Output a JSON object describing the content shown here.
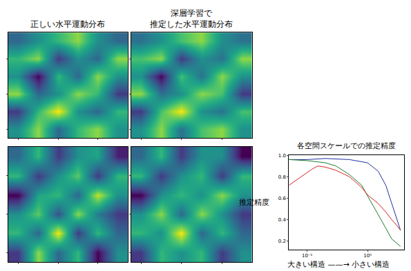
{
  "chart_data": [
    {
      "type": "heatmap",
      "title": "正しい水平運動分布",
      "tick_labels": false,
      "cells": [
        [
          0.5,
          0.6,
          0.45,
          0.55,
          0.6,
          0.5
        ],
        [
          0.4,
          0.55,
          0.65,
          0.5,
          0.45,
          0.55
        ],
        [
          0.6,
          0.45,
          0.5,
          0.6,
          0.55,
          0.4
        ],
        [
          0.5,
          0.35,
          0.55,
          0.45,
          0.6,
          0.5
        ],
        [
          0.55,
          0.6,
          0.4,
          0.5,
          0.45,
          0.6
        ],
        [
          0.45,
          0.5,
          0.55,
          0.6,
          0.5,
          0.45
        ]
      ]
    },
    {
      "type": "heatmap",
      "title": "深層学習で\n推定した水平運動分布",
      "tick_labels": false,
      "cells": [
        [
          0.5,
          0.58,
          0.47,
          0.55,
          0.58,
          0.5
        ],
        [
          0.42,
          0.55,
          0.62,
          0.5,
          0.47,
          0.55
        ],
        [
          0.58,
          0.47,
          0.5,
          0.58,
          0.55,
          0.42
        ],
        [
          0.5,
          0.38,
          0.55,
          0.47,
          0.58,
          0.5
        ],
        [
          0.55,
          0.58,
          0.42,
          0.5,
          0.47,
          0.58
        ],
        [
          0.47,
          0.5,
          0.55,
          0.58,
          0.5,
          0.47
        ]
      ]
    },
    {
      "type": "heatmap",
      "tick_labels": false,
      "cells": [
        [
          0.3,
          0.7,
          0.4,
          0.6,
          0.2,
          0.5
        ],
        [
          0.6,
          0.4,
          0.8,
          0.3,
          0.6,
          0.4
        ],
        [
          0.5,
          0.65,
          0.35,
          0.7,
          0.45,
          0.3
        ],
        [
          0.2,
          0.55,
          0.6,
          0.4,
          0.75,
          0.5
        ],
        [
          0.6,
          0.3,
          0.5,
          0.65,
          0.3,
          0.6
        ],
        [
          0.4,
          0.6,
          0.3,
          0.5,
          0.55,
          0.25
        ]
      ]
    },
    {
      "type": "heatmap",
      "tick_labels": false,
      "cells": [
        [
          0.4,
          0.55,
          0.5,
          0.55,
          0.4,
          0.5
        ],
        [
          0.55,
          0.5,
          0.65,
          0.45,
          0.55,
          0.45
        ],
        [
          0.5,
          0.6,
          0.45,
          0.6,
          0.5,
          0.4
        ],
        [
          0.35,
          0.5,
          0.55,
          0.5,
          0.6,
          0.5
        ],
        [
          0.55,
          0.4,
          0.5,
          0.55,
          0.4,
          0.55
        ],
        [
          0.45,
          0.55,
          0.4,
          0.5,
          0.5,
          0.35
        ]
      ]
    },
    {
      "type": "line",
      "title": "各空間スケールでの推定精度",
      "x_label": "大きい構造 ——→ 小さい構造",
      "y_label": "推定精度",
      "log": "x",
      "xlim": [
        0.05,
        4
      ],
      "ylim": [
        0.12,
        1.0
      ],
      "xticks": [
        {
          "value": 0.1,
          "label": "10⁻¹"
        },
        {
          "value": 1,
          "label": "10⁰"
        }
      ],
      "yticks": [
        0.2,
        0.4,
        0.6,
        0.8,
        {
          "value": 1,
          "label": "1.0"
        }
      ],
      "series": [
        {
          "color": "#1f2fa0",
          "x": [
            0.05,
            0.1,
            0.2,
            0.5,
            1.0,
            1.5,
            2.0,
            2.5,
            3.0,
            3.5
          ],
          "values": [
            0.96,
            0.96,
            0.97,
            0.96,
            0.93,
            0.85,
            0.72,
            0.55,
            0.42,
            0.3
          ]
        },
        {
          "color": "#1e7a2a",
          "x": [
            0.05,
            0.1,
            0.2,
            0.3,
            0.5,
            0.8,
            1.0,
            1.5,
            2.0,
            2.5,
            3.0,
            3.5
          ],
          "values": [
            0.96,
            0.95,
            0.93,
            0.9,
            0.82,
            0.72,
            0.62,
            0.45,
            0.32,
            0.22,
            0.18,
            0.15
          ]
        },
        {
          "color": "#d62020",
          "x": [
            0.05,
            0.08,
            0.12,
            0.15,
            0.2,
            0.3,
            0.5,
            0.8,
            1.0,
            1.5,
            2.0,
            2.5,
            3.0,
            3.5
          ],
          "values": [
            0.72,
            0.8,
            0.87,
            0.9,
            0.89,
            0.86,
            0.8,
            0.7,
            0.63,
            0.55,
            0.47,
            0.4,
            0.35,
            0.3
          ]
        }
      ]
    }
  ]
}
